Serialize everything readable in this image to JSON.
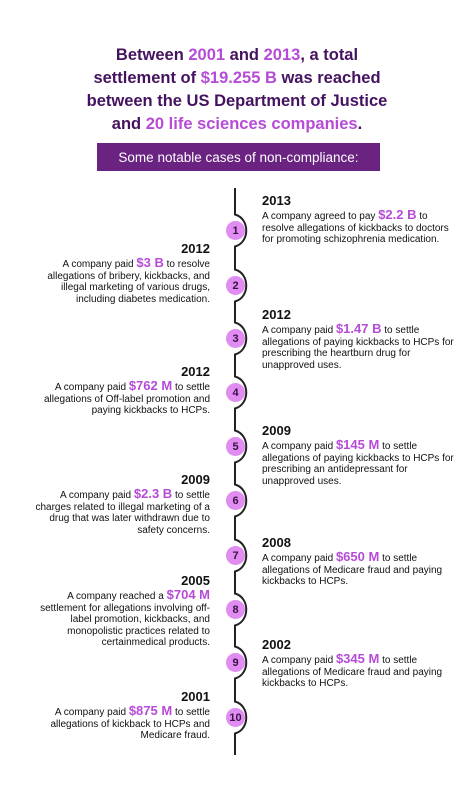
{
  "headline": {
    "l1a": "Between ",
    "y1": "2001",
    "l1b": " and ",
    "y2": "2013",
    "l1c": ", a total",
    "l2a": "settlement of ",
    "total": "$19.255 B",
    "l2b": " was reached",
    "l3": "between the US Department of Justice",
    "l4a": "and ",
    "companies": "20 life sciences companies",
    "l4b": "."
  },
  "banner": "Some notable cases of non-compliance:",
  "colors": {
    "title": "#44125f",
    "accent": "#b74bd8",
    "banner": "#6a2380",
    "marker": "#e08cf0"
  },
  "cases": [
    {
      "num": "1",
      "year": "2013",
      "pre": "A company agreed to pay ",
      "amount": "$2.2 B",
      "post": " to resolve allegations of kickbacks to doctors for promoting schizophrenia medication."
    },
    {
      "num": "2",
      "year": "2012",
      "pre": "A company paid ",
      "amount": "$3 B",
      "post": " to resolve allegations of bribery, kickbacks, and illegal marketing of various drugs, including diabetes medication."
    },
    {
      "num": "3",
      "year": "2012",
      "pre": "A company paid ",
      "amount": "$1.47 B",
      "post": " to settle allegations of paying kickbacks to HCPs for prescribing the heartburn drug for unapproved uses."
    },
    {
      "num": "4",
      "year": "2012",
      "pre": "A company paid ",
      "amount": "$762 M",
      "post": " to settle allegations of Off-label promotion and paying kickbacks to HCPs."
    },
    {
      "num": "5",
      "year": "2009",
      "pre": "A company paid ",
      "amount": "$145 M",
      "post": " to settle allegations of paying kickbacks to HCPs for prescribing an antidepressant for unapproved uses."
    },
    {
      "num": "6",
      "year": "2009",
      "pre": "A company paid ",
      "amount": "$2.3 B",
      "post": " to settle charges related to illegal marketing of a drug that was later withdrawn due to safety concerns."
    },
    {
      "num": "7",
      "year": "2008",
      "pre": "A company paid ",
      "amount": "$650 M",
      "post": " to settle allegations of Medicare fraud and paying kickbacks to HCPs."
    },
    {
      "num": "8",
      "year": "2005",
      "pre": "A company reached a ",
      "amount": "$704 M",
      "post": " settlement for allegations involving off-label promotion, kickbacks, and monopolistic practices related to certainmedical products."
    },
    {
      "num": "9",
      "year": "2002",
      "pre": "A company paid ",
      "amount": "$345 M",
      "post": " to settle allegations of Medicare fraud and paying kickbacks to HCPs."
    },
    {
      "num": "10",
      "year": "2001",
      "pre": "A company paid ",
      "amount": "$875 M",
      "post": " to settle allegations of kickback to HCPs and Medicare fraud."
    }
  ]
}
